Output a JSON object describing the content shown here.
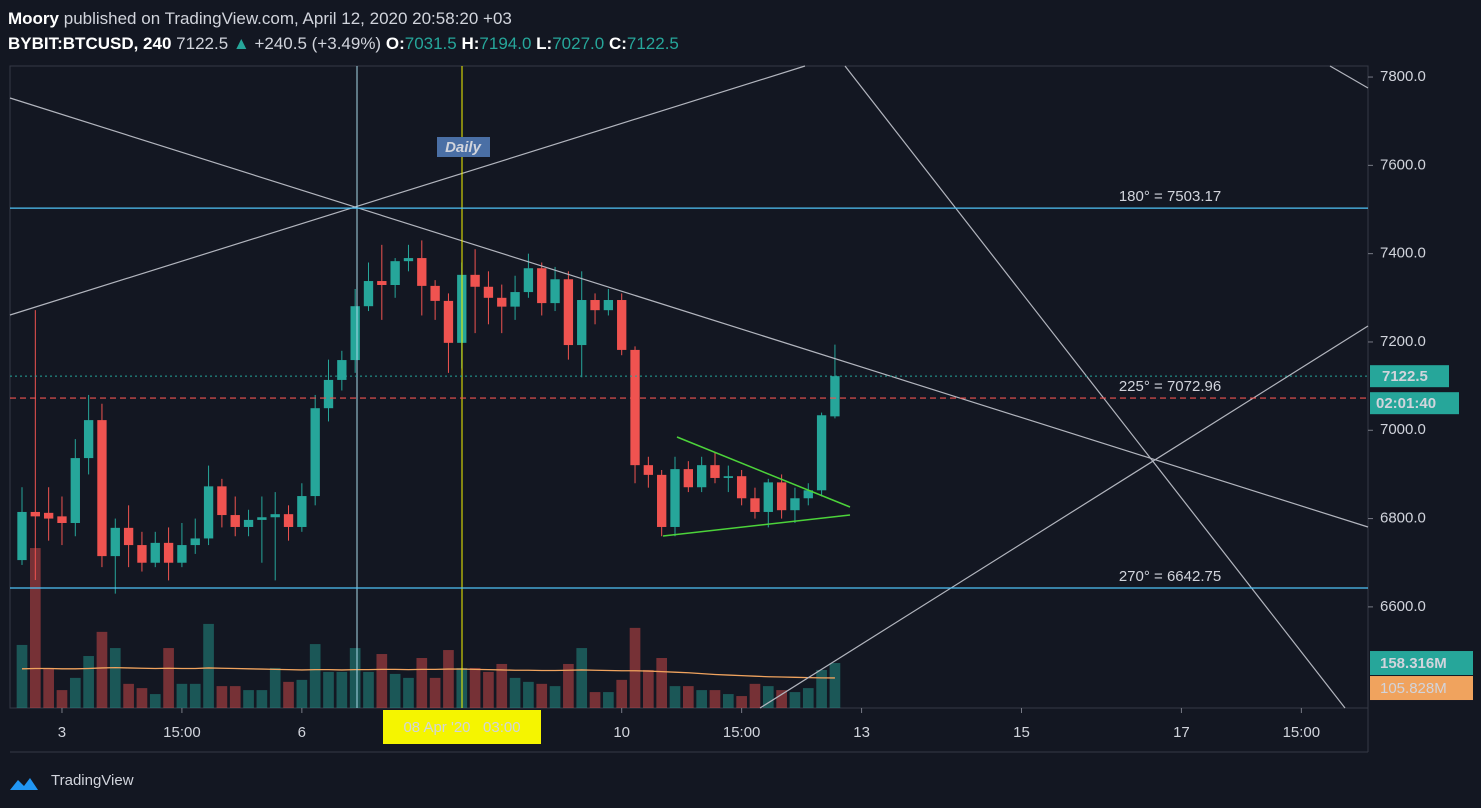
{
  "header": {
    "author": "Moory",
    "published": "published on TradingView.com, April 12, 2020 20:58:20 +03",
    "symbol": "BYBIT:BTCUSD, 240",
    "last": "7122.5",
    "arrow": "▲",
    "change": "+240.5 (+3.49%)",
    "o_key": "O:",
    "o_val": "7031.5",
    "h_key": "H:",
    "h_val": "7194.0",
    "l_key": "L:",
    "l_val": "7027.0",
    "c_key": "C:",
    "c_val": "7122.5"
  },
  "daily_label": "Daily",
  "crosshair_label": "08 Apr '20   03:00",
  "brand": "TradingView",
  "chart_data": {
    "type": "candlestick",
    "up_color": "#26a69a",
    "down_color": "#ef5350",
    "open": [
      6706,
      6815,
      6813,
      6805,
      6790,
      6937,
      7023,
      6715,
      6779,
      6740,
      6700,
      6745,
      6700,
      6740,
      6755,
      6873,
      6808,
      6781,
      6797,
      6803,
      6810,
      6781,
      6851,
      7050,
      7114,
      7159,
      7281,
      7338,
      7329,
      7383,
      7390,
      7327,
      7293,
      7198,
      7352,
      7325,
      7300,
      7280,
      7313,
      7367,
      7288,
      7342,
      7193,
      7295,
      7272,
      7295,
      7182,
      6921,
      6899,
      6781,
      6912,
      6871,
      6921,
      6892,
      6896,
      6846,
      6815,
      6882,
      6819,
      6846,
      6864,
      7031.5
    ],
    "high": [
      6871,
      7272,
      6871,
      6850,
      6980,
      7080,
      7060,
      6800,
      6830,
      6770,
      6770,
      6780,
      6790,
      6800,
      6920,
      6890,
      6850,
      6820,
      6850,
      6860,
      6830,
      6880,
      7080,
      7160,
      7180,
      7320,
      7380,
      7420,
      7390,
      7420,
      7430,
      7340,
      7310,
      7380,
      7410,
      7360,
      7330,
      7350,
      7400,
      7380,
      7370,
      7360,
      7360,
      7310,
      7320,
      7310,
      7190,
      6940,
      6910,
      6940,
      6930,
      6940,
      6950,
      6920,
      6910,
      6870,
      6890,
      6900,
      6870,
      6880,
      7040,
      7194
    ],
    "low": [
      6695,
      6661,
      6750,
      6740,
      6760,
      6900,
      6690,
      6630,
      6690,
      6680,
      6690,
      6660,
      6690,
      6720,
      6740,
      6780,
      6760,
      6760,
      6700,
      6660,
      6750,
      6770,
      6830,
      7020,
      7090,
      7130,
      7270,
      7250,
      7300,
      7360,
      7260,
      7250,
      7130,
      7140,
      7220,
      7240,
      7220,
      7250,
      7300,
      7260,
      7270,
      7160,
      7120,
      7240,
      7260,
      7170,
      6880,
      6870,
      6760,
      6760,
      6860,
      6860,
      6880,
      6860,
      6830,
      6800,
      6780,
      6800,
      6790,
      6830,
      6850,
      7027
    ],
    "close": [
      6815,
      6805,
      6800,
      6790,
      6937,
      7023,
      6715,
      6779,
      6740,
      6700,
      6745,
      6700,
      6740,
      6755,
      6873,
      6808,
      6781,
      6797,
      6803,
      6810,
      6781,
      6851,
      7050,
      7114,
      7159,
      7281,
      7338,
      7329,
      7383,
      7390,
      7327,
      7293,
      7198,
      7352,
      7325,
      7300,
      7280,
      7313,
      7367,
      7288,
      7342,
      7193,
      7295,
      7272,
      7295,
      7182,
      6921,
      6899,
      6781,
      6912,
      6871,
      6921,
      6892,
      6896,
      6846,
      6815,
      6882,
      6819,
      6846,
      6864,
      7034,
      7122.5
    ],
    "volume": [
      222,
      563,
      141,
      63,
      106,
      183,
      268,
      211,
      85,
      70,
      49,
      211,
      85,
      85,
      296,
      77,
      77,
      63,
      63,
      141,
      92,
      99,
      225,
      127,
      127,
      211,
      127,
      190,
      120,
      106,
      176,
      106,
      204,
      141,
      141,
      127,
      155,
      106,
      92,
      85,
      77,
      155,
      211,
      56,
      56,
      99,
      282,
      134,
      176,
      77,
      77,
      63,
      63,
      49,
      42,
      85,
      77,
      63,
      56,
      70,
      134,
      158.316
    ],
    "volume_ma": [
      138,
      139,
      139,
      138,
      138,
      139,
      141,
      142,
      141,
      140,
      139,
      140,
      139,
      139,
      141,
      140,
      139,
      138,
      137,
      136,
      135,
      134,
      135,
      135,
      134,
      135,
      135,
      136,
      136,
      135,
      136,
      136,
      137,
      137,
      136,
      135,
      134,
      133,
      133,
      132,
      132,
      133,
      134,
      133,
      132,
      131,
      131,
      130,
      128,
      126,
      124,
      121,
      118,
      116,
      114,
      112,
      110,
      109,
      108,
      107,
      106,
      105.828
    ],
    "ma_color": "#f0a35e",
    "volume_label": "158.316M",
    "ma_label": "105.828M",
    "countdown": "02:01:40",
    "xlim": [
      -0.9,
      101
    ],
    "xticks": [
      {
        "value": 3,
        "label": "3"
      },
      {
        "value": 12,
        "label": "15:00"
      },
      {
        "value": 21,
        "label": "6"
      },
      {
        "value": 45,
        "label": "10"
      },
      {
        "value": 54,
        "label": "15:00"
      },
      {
        "value": 63,
        "label": "13"
      },
      {
        "value": 75,
        "label": "15"
      },
      {
        "value": 87,
        "label": "17"
      },
      {
        "value": 96,
        "label": "15:00"
      }
    ],
    "ylim": [
      6371,
      7825
    ],
    "yticks": [
      {
        "value": 6600,
        "label": "6600.0"
      },
      {
        "value": 6800,
        "label": "6800.0"
      },
      {
        "value": 7000,
        "label": "7000.0"
      },
      {
        "value": 7200,
        "label": "7200.0"
      },
      {
        "value": 7400,
        "label": "7400.0"
      },
      {
        "value": 7600,
        "label": "7600.0"
      },
      {
        "value": 7800,
        "label": "7800.0"
      }
    ],
    "volume_ylim": [
      0,
      2260
    ],
    "levels": [
      {
        "label": "180° = 7503.17",
        "value": 7503.17,
        "color": "#4fc3f7",
        "dashed": false
      },
      {
        "label": "225° = 7072.96",
        "value": 7072.96,
        "color": "#ef5350",
        "dashed": true
      },
      {
        "label": "270° = 6642.75",
        "value": 6642.75,
        "color": "#4fc3f7",
        "dashed": false
      }
    ]
  }
}
